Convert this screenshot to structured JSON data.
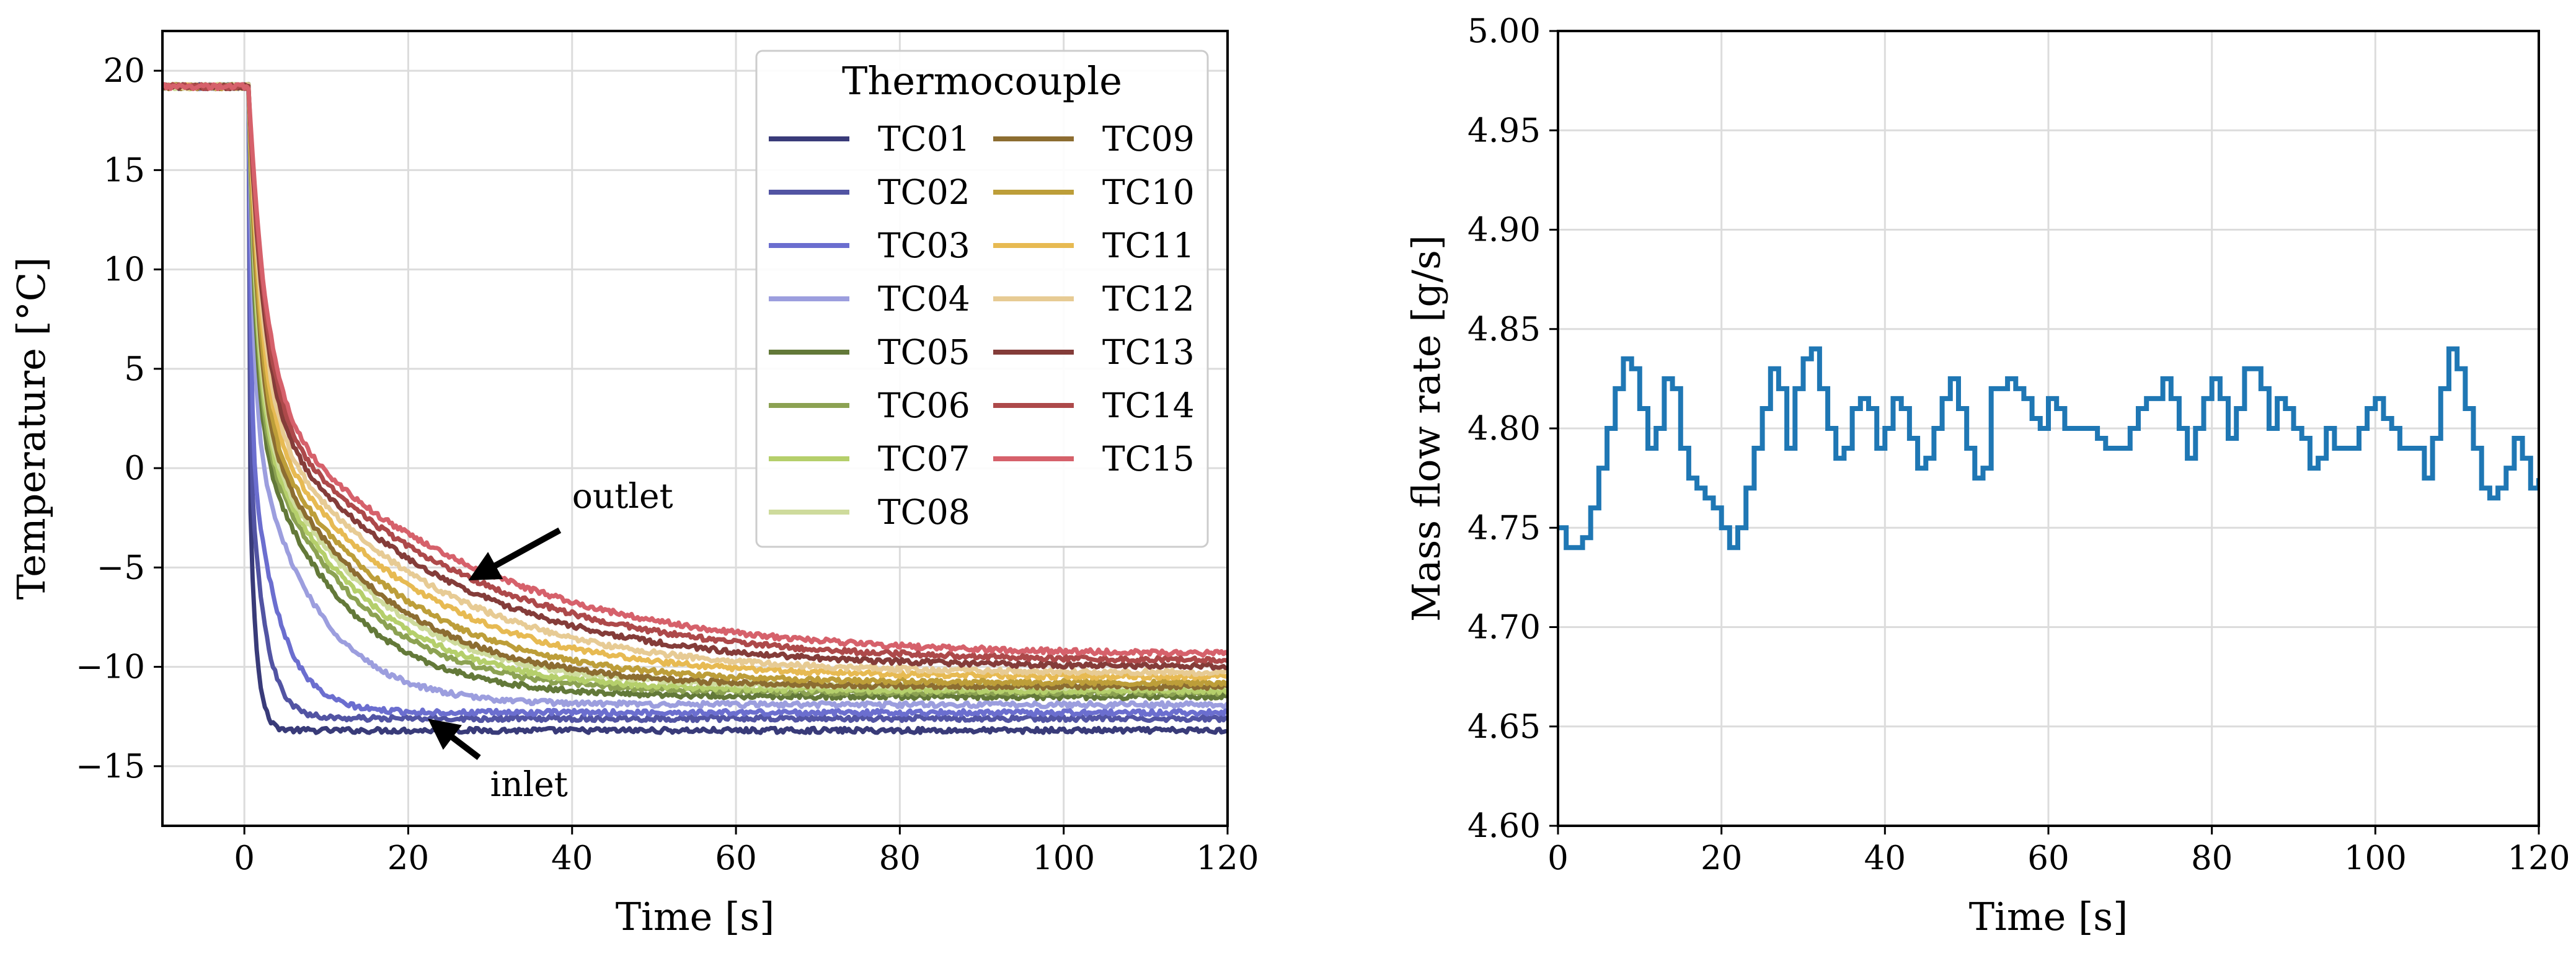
{
  "chart_data": [
    {
      "type": "line",
      "xlabel": "Time [s]",
      "ylabel": "Temperature [°C]",
      "xlim": [
        -10,
        120
      ],
      "ylim": [
        -18,
        22
      ],
      "xticks": [
        0,
        20,
        40,
        60,
        80,
        100,
        120
      ],
      "xtick_labels": [
        "0",
        "20",
        "40",
        "60",
        "80",
        "100",
        "120"
      ],
      "yticks": [
        -15,
        -10,
        -5,
        0,
        5,
        10,
        15,
        20
      ],
      "ytick_labels": [
        "−15",
        "−10",
        "−5",
        "0",
        "5",
        "10",
        "15",
        "20"
      ],
      "grid": true,
      "legend": {
        "title": "Thermocouple",
        "position": "top-right",
        "columns": 2
      },
      "series": [
        {
          "name": "TC01",
          "color": "#393b79",
          "initial": 19.2,
          "final": -13.2,
          "tau": 0.8,
          "onset": 0.5
        },
        {
          "name": "TC02",
          "color": "#5254a3",
          "initial": 19.2,
          "final": -12.6,
          "tau": 1.8,
          "onset": 0.5
        },
        {
          "name": "TC03",
          "color": "#6b6ecf",
          "initial": 19.2,
          "final": -12.3,
          "tau": 3.5,
          "onset": 0.5
        },
        {
          "name": "TC04",
          "color": "#9c9ede",
          "initial": 19.2,
          "final": -11.9,
          "tau": 8.0,
          "onset": 0.5
        },
        {
          "name": "TC05",
          "color": "#637939",
          "initial": 19.2,
          "final": -11.5,
          "tau": 11.0,
          "onset": 0.5
        },
        {
          "name": "TC06",
          "color": "#8ca252",
          "initial": 19.2,
          "final": -11.3,
          "tau": 12.5,
          "onset": 0.5
        },
        {
          "name": "TC07",
          "color": "#b5cf6b",
          "initial": 19.2,
          "final": -11.2,
          "tau": 13.5,
          "onset": 0.5
        },
        {
          "name": "TC08",
          "color": "#cedb9c",
          "initial": 19.2,
          "final": -11.0,
          "tau": 14.5,
          "onset": 0.5
        },
        {
          "name": "TC09",
          "color": "#8c6d31",
          "initial": 19.2,
          "final": -11.0,
          "tau": 15.5,
          "onset": 0.5
        },
        {
          "name": "TC10",
          "color": "#bd9e39",
          "initial": 19.2,
          "final": -10.8,
          "tau": 17.0,
          "onset": 0.5
        },
        {
          "name": "TC11",
          "color": "#e7ba52",
          "initial": 19.2,
          "final": -10.5,
          "tau": 19.0,
          "onset": 0.5
        },
        {
          "name": "TC12",
          "color": "#e7cb94",
          "initial": 19.2,
          "final": -10.3,
          "tau": 21.0,
          "onset": 0.5
        },
        {
          "name": "TC13",
          "color": "#843c39",
          "initial": 19.2,
          "final": -10.0,
          "tau": 23.0,
          "onset": 0.5
        },
        {
          "name": "TC14",
          "color": "#ad494a",
          "initial": 19.2,
          "final": -9.7,
          "tau": 25.0,
          "onset": 0.5
        },
        {
          "name": "TC15",
          "color": "#d6616b",
          "initial": 19.2,
          "final": -9.4,
          "tau": 27.0,
          "onset": 0.5
        }
      ],
      "annotations": [
        {
          "text": "outlet",
          "x": 28,
          "y": -5.5,
          "text_x": 40,
          "text_y": -2
        },
        {
          "text": "inlet",
          "x": 23,
          "y": -12.8,
          "text_x": 30,
          "text_y": -16.5
        }
      ]
    },
    {
      "type": "line",
      "step": true,
      "xlabel": "Time [s]",
      "ylabel": "Mass flow rate [g/s]",
      "xlim": [
        0,
        120
      ],
      "ylim": [
        4.6,
        5.0
      ],
      "xticks": [
        0,
        20,
        40,
        60,
        80,
        100,
        120
      ],
      "xtick_labels": [
        "0",
        "20",
        "40",
        "60",
        "80",
        "100",
        "120"
      ],
      "yticks": [
        4.6,
        4.65,
        4.7,
        4.75,
        4.8,
        4.85,
        4.9,
        4.95,
        5.0
      ],
      "ytick_labels": [
        "4.60",
        "4.65",
        "4.70",
        "4.75",
        "4.80",
        "4.85",
        "4.90",
        "4.95",
        "5.00"
      ],
      "grid": true,
      "series": [
        {
          "name": "Mass flow rate",
          "color": "#1f77b4",
          "x": [
            0,
            1,
            2,
            3,
            4,
            5,
            6,
            7,
            8,
            9,
            10,
            11,
            12,
            13,
            14,
            15,
            16,
            17,
            18,
            19,
            20,
            21,
            22,
            23,
            24,
            25,
            26,
            27,
            28,
            29,
            30,
            31,
            32,
            33,
            34,
            35,
            36,
            37,
            38,
            39,
            40,
            41,
            42,
            43,
            44,
            45,
            46,
            47,
            48,
            49,
            50,
            51,
            52,
            53,
            54,
            55,
            56,
            57,
            58,
            59,
            60,
            61,
            62,
            63,
            64,
            65,
            66,
            67,
            68,
            69,
            70,
            71,
            72,
            73,
            74,
            75,
            76,
            77,
            78,
            79,
            80,
            81,
            82,
            83,
            84,
            85,
            86,
            87,
            88,
            89,
            90,
            91,
            92,
            93,
            94,
            95,
            96,
            97,
            98,
            99,
            100,
            101,
            102,
            103,
            104,
            105,
            106,
            107,
            108,
            109,
            110,
            111,
            112,
            113,
            114,
            115,
            116,
            117,
            118,
            119,
            120
          ],
          "y": [
            4.75,
            4.74,
            4.74,
            4.745,
            4.76,
            4.78,
            4.8,
            4.82,
            4.835,
            4.83,
            4.81,
            4.79,
            4.8,
            4.825,
            4.82,
            4.79,
            4.775,
            4.77,
            4.765,
            4.76,
            4.75,
            4.74,
            4.75,
            4.77,
            4.79,
            4.81,
            4.83,
            4.82,
            4.79,
            4.82,
            4.835,
            4.84,
            4.82,
            4.8,
            4.785,
            4.79,
            4.81,
            4.815,
            4.81,
            4.79,
            4.8,
            4.815,
            4.81,
            4.795,
            4.78,
            4.785,
            4.8,
            4.815,
            4.825,
            4.81,
            4.79,
            4.775,
            4.78,
            4.82,
            4.82,
            4.825,
            4.82,
            4.815,
            4.805,
            4.8,
            4.815,
            4.81,
            4.8,
            4.8,
            4.8,
            4.8,
            4.795,
            4.79,
            4.79,
            4.79,
            4.8,
            4.81,
            4.815,
            4.815,
            4.825,
            4.815,
            4.8,
            4.785,
            4.8,
            4.815,
            4.825,
            4.815,
            4.795,
            4.81,
            4.83,
            4.83,
            4.82,
            4.8,
            4.815,
            4.81,
            4.8,
            4.795,
            4.78,
            4.785,
            4.8,
            4.79,
            4.79,
            4.79,
            4.8,
            4.81,
            4.815,
            4.805,
            4.8,
            4.79,
            4.79,
            4.79,
            4.775,
            4.795,
            4.82,
            4.84,
            4.83,
            4.81,
            4.79,
            4.77,
            4.765,
            4.77,
            4.78,
            4.795,
            4.785,
            4.77,
            4.775
          ]
        }
      ]
    }
  ]
}
